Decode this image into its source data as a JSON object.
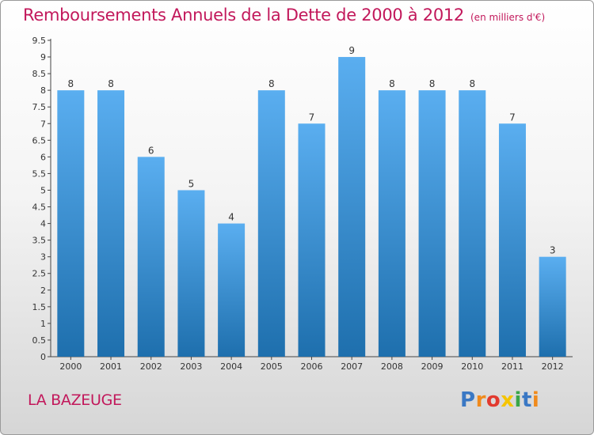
{
  "chart_data": {
    "type": "bar",
    "title": "Remboursements Annuels de la Dette de 2000 à 2012",
    "unit": "(en milliers d'€)",
    "categories": [
      "2000",
      "2001",
      "2002",
      "2003",
      "2004",
      "2005",
      "2006",
      "2007",
      "2008",
      "2009",
      "2010",
      "2011",
      "2012"
    ],
    "values": [
      8,
      8,
      6,
      5,
      4,
      8,
      7,
      9,
      8,
      8,
      8,
      7,
      3
    ],
    "ylim": [
      0,
      9.5
    ],
    "yticks": [
      0,
      0.5,
      1,
      1.5,
      2,
      2.5,
      3,
      3.5,
      4,
      4.5,
      5,
      5.5,
      6,
      6.5,
      7,
      7.5,
      8,
      8.5,
      9,
      9.5
    ],
    "ytick_labels": [
      "0",
      "0.5",
      "1",
      "1.5",
      "2",
      "2.5",
      "3",
      "3.5",
      "4",
      "4.5",
      "5",
      "5.5",
      "6",
      "6.5",
      "7",
      "7.5",
      "8",
      "8.5",
      "9",
      "9.5"
    ],
    "xlabel": "",
    "ylabel": "",
    "grid": false,
    "bar_color_top": "#5aaef0",
    "bar_color_bottom": "#1e6fad"
  },
  "commune": "LA BAZEUGE",
  "logo": {
    "letters": [
      "P",
      "r",
      "o",
      "x",
      "i",
      "t",
      "i"
    ],
    "colors": [
      "#3a78c4",
      "#f08a1c",
      "#e23a2f",
      "#f5c400",
      "#3aa648",
      "#3a78c4",
      "#f08a1c"
    ]
  }
}
